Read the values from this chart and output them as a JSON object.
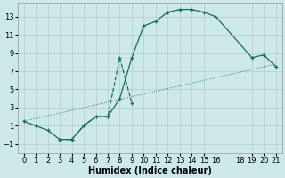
{
  "xlabel": "Humidex (Indice chaleur)",
  "xlim": [
    -0.5,
    21.5
  ],
  "ylim": [
    -2.0,
    14.5
  ],
  "yticks": [
    -1,
    1,
    3,
    5,
    7,
    9,
    11,
    13
  ],
  "xticks": [
    0,
    1,
    2,
    3,
    4,
    5,
    6,
    7,
    8,
    9,
    10,
    11,
    12,
    13,
    14,
    15,
    16,
    18,
    19,
    20,
    21
  ],
  "bg_color": "#cce8e8",
  "grid_color": "#b8d0d0",
  "line_color": "#1a6b5a",
  "curve_main_x": [
    0,
    1,
    2,
    3,
    4,
    5,
    6,
    7,
    8,
    9,
    10,
    11,
    12,
    13,
    14,
    15,
    16,
    19,
    20,
    21
  ],
  "curve_main_y": [
    1.5,
    1.0,
    0.5,
    -0.5,
    -0.5,
    1.0,
    2.0,
    2.0,
    4.0,
    8.5,
    12.0,
    12.5,
    13.5,
    13.8,
    13.8,
    13.5,
    13.0,
    8.5,
    8.8,
    7.5
  ],
  "curve_diag_x": [
    0,
    1,
    2,
    3,
    4,
    5,
    6,
    7,
    8,
    9,
    10,
    11,
    12,
    13,
    14,
    15,
    16,
    17,
    18,
    19,
    20,
    21
  ],
  "curve_diag_y": [
    1.5,
    1.8,
    2.1,
    2.4,
    2.7,
    3.0,
    3.3,
    3.6,
    3.9,
    4.2,
    4.5,
    4.8,
    5.1,
    5.4,
    5.7,
    6.0,
    6.3,
    6.6,
    6.9,
    7.2,
    7.5,
    7.8
  ],
  "curve_zigzag_x": [
    3,
    4,
    5,
    6,
    7,
    8,
    9
  ],
  "curve_zigzag_y": [
    -0.5,
    -0.5,
    1.0,
    2.0,
    2.0,
    8.5,
    3.5
  ],
  "tick_fontsize": 6,
  "xlabel_fontsize": 7
}
